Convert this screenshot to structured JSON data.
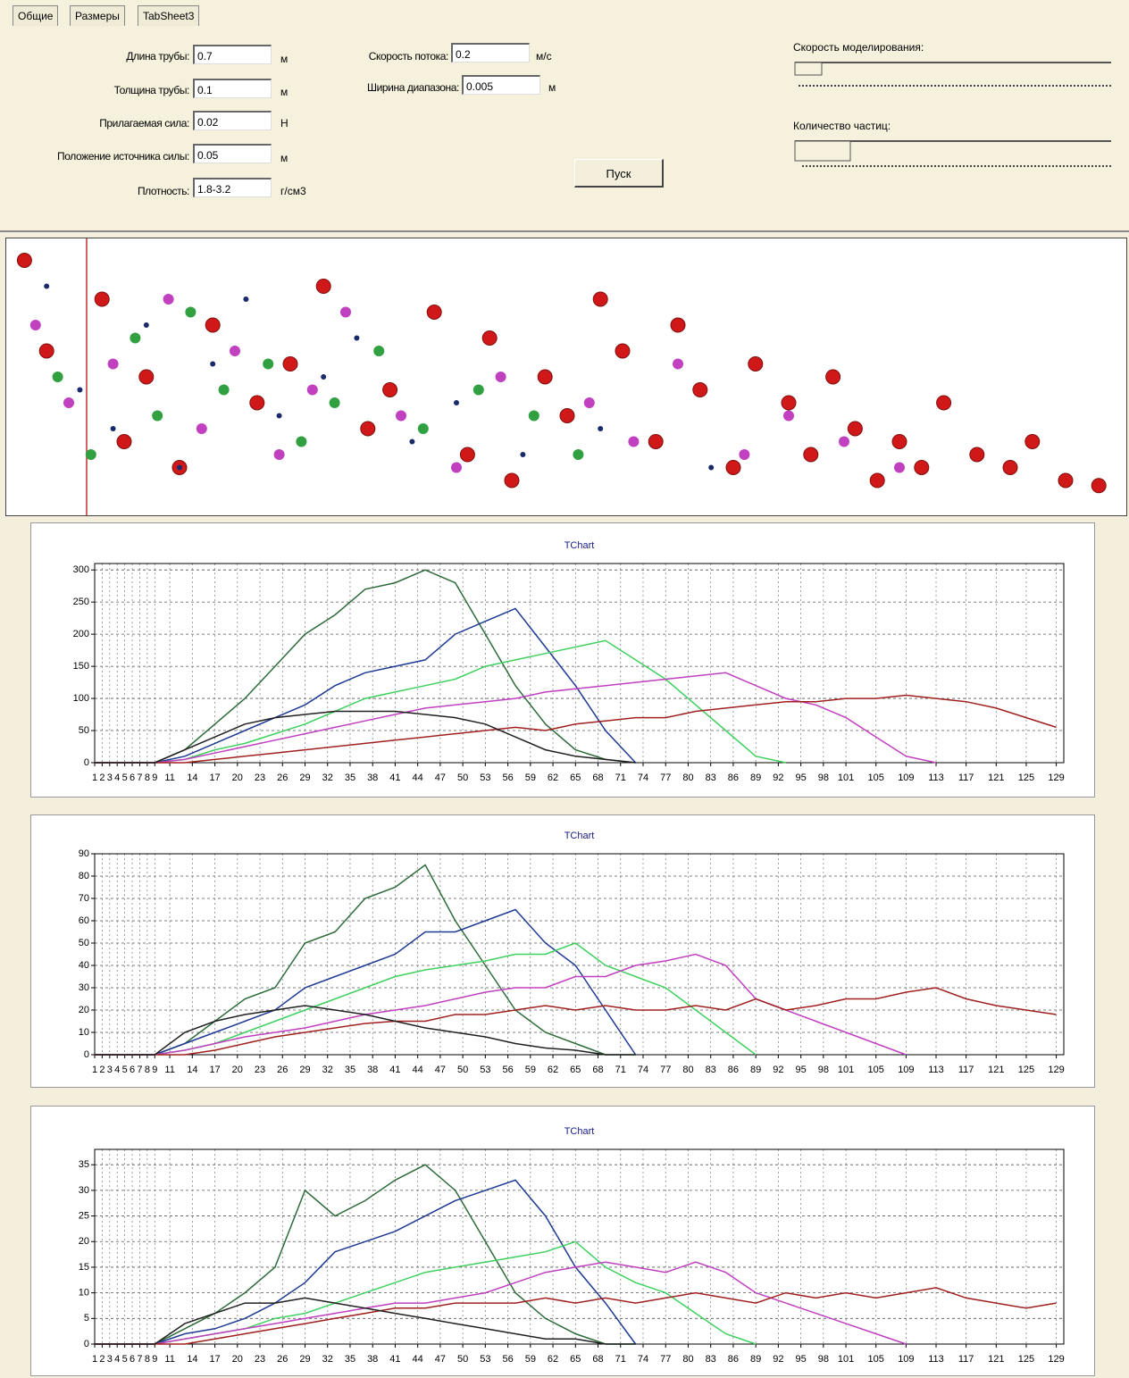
{
  "form": {
    "tabs": [
      "Общие",
      "Размеры",
      "TabSheet3"
    ],
    "left_fields": [
      {
        "label": "Длина трубы:",
        "value": "0.7",
        "unit": "м"
      },
      {
        "label": "Толщина трубы:",
        "value": "0.1",
        "unit": "м"
      },
      {
        "label": "Прилагаемая сила:",
        "value": "0.02",
        "unit": "Н"
      },
      {
        "label": "Положение источника силы:",
        "value": "0.05",
        "unit": "м"
      },
      {
        "label": "Плотность:",
        "value": "1.8-3.2",
        "unit": "г/см3"
      }
    ],
    "middle_fields": [
      {
        "label": "Скорость потока:",
        "value": "0.2",
        "unit": "м/с"
      },
      {
        "label": "Ширина диапазона:",
        "value": "0.005",
        "unit": "м"
      }
    ],
    "button": "Пуск",
    "sliders": [
      "Скорость моделирования:",
      "Количество частиц:"
    ]
  },
  "particles": [
    {
      "color": "#d01818",
      "x": [
        1,
        3,
        8,
        10,
        12,
        15,
        18,
        22,
        25,
        28,
        32,
        34,
        38,
        41,
        43,
        45,
        48,
        50,
        53,
        55,
        58,
        60,
        62,
        65,
        67,
        70,
        72,
        74,
        76,
        78,
        80,
        82,
        84,
        87,
        90,
        92,
        95,
        98
      ],
      "y": [
        5,
        40,
        20,
        75,
        50,
        85,
        30,
        60,
        45,
        15,
        70,
        55,
        25,
        80,
        35,
        90,
        50,
        65,
        20,
        40,
        75,
        30,
        55,
        85,
        45,
        60,
        80,
        50,
        70,
        90,
        75,
        85,
        60,
        80,
        85,
        75,
        90,
        92
      ]
    },
    {
      "color": "#c040c0",
      "x": [
        2,
        5,
        9,
        14,
        17,
        20,
        24,
        27,
        30,
        35,
        40,
        44,
        52,
        56,
        60,
        66,
        70,
        75,
        80
      ],
      "y": [
        30,
        60,
        45,
        20,
        70,
        40,
        80,
        55,
        25,
        65,
        85,
        50,
        60,
        75,
        45,
        80,
        65,
        75,
        85
      ]
    },
    {
      "color": "#30a040",
      "x": [
        4,
        7,
        11,
        13,
        16,
        19,
        23,
        26,
        29,
        33,
        37,
        42,
        47,
        51
      ],
      "y": [
        50,
        80,
        35,
        65,
        25,
        55,
        45,
        75,
        60,
        40,
        70,
        55,
        65,
        80
      ]
    },
    {
      "color": "#1a2a6a",
      "x": [
        3,
        6,
        9,
        12,
        15,
        18,
        21,
        24,
        28,
        31,
        36,
        40,
        46,
        53,
        63
      ],
      "y": [
        15,
        55,
        70,
        30,
        85,
        45,
        20,
        65,
        50,
        35,
        75,
        60,
        80,
        70,
        85
      ]
    }
  ],
  "chart_data": [
    {
      "type": "line",
      "title": "TChart",
      "grid": true,
      "x": [
        1,
        5,
        9,
        13,
        17,
        21,
        25,
        29,
        33,
        37,
        41,
        45,
        49,
        53,
        57,
        61,
        65,
        69,
        73,
        77,
        81,
        85,
        89,
        93,
        97,
        101,
        105,
        109,
        113,
        117,
        121,
        125,
        129
      ],
      "xlim": [
        1,
        130
      ],
      "xticks": [
        1,
        2,
        3,
        4,
        5,
        6,
        7,
        8,
        9,
        11,
        14,
        17,
        20,
        23,
        26,
        29,
        32,
        35,
        38,
        41,
        44,
        47,
        50,
        53,
        56,
        59,
        62,
        65,
        68,
        71,
        74,
        77,
        80,
        83,
        86,
        89,
        92,
        95,
        98,
        101,
        105,
        109,
        113,
        117,
        121,
        125,
        129
      ],
      "ylim": [
        0,
        310
      ],
      "yticks": [
        0,
        50,
        100,
        150,
        200,
        250,
        300
      ],
      "series": [
        {
          "color": "#2e6b3a",
          "values": [
            0,
            0,
            0,
            20,
            60,
            100,
            150,
            200,
            230,
            270,
            280,
            300,
            280,
            200,
            120,
            60,
            20,
            5,
            0,
            null,
            null,
            null,
            null,
            null,
            null,
            null,
            null,
            null,
            null,
            null,
            null,
            null,
            null
          ]
        },
        {
          "color": "#1f3a93",
          "values": [
            0,
            0,
            0,
            10,
            30,
            50,
            70,
            90,
            120,
            140,
            150,
            160,
            200,
            220,
            240,
            180,
            120,
            50,
            0,
            null,
            null,
            null,
            null,
            null,
            null,
            null,
            null,
            null,
            null,
            null,
            null,
            null,
            null
          ]
        },
        {
          "color": "#3fd060",
          "values": [
            0,
            0,
            0,
            5,
            20,
            30,
            45,
            60,
            80,
            100,
            110,
            120,
            130,
            150,
            160,
            170,
            180,
            190,
            160,
            130,
            90,
            50,
            10,
            0,
            null,
            null,
            null,
            null,
            null,
            null,
            null,
            null,
            null
          ]
        },
        {
          "color": "#c040c0",
          "values": [
            0,
            0,
            0,
            5,
            15,
            25,
            35,
            45,
            55,
            65,
            75,
            85,
            90,
            95,
            100,
            110,
            115,
            120,
            125,
            130,
            135,
            140,
            120,
            100,
            90,
            70,
            40,
            10,
            0,
            null,
            null,
            null,
            null
          ]
        },
        {
          "color": "#a02020",
          "values": [
            0,
            0,
            0,
            0,
            5,
            10,
            15,
            20,
            25,
            30,
            35,
            40,
            45,
            50,
            55,
            50,
            60,
            65,
            70,
            70,
            80,
            85,
            90,
            95,
            95,
            100,
            100,
            105,
            100,
            95,
            85,
            70,
            55
          ]
        },
        {
          "color": "#202020",
          "values": [
            0,
            0,
            0,
            20,
            40,
            60,
            70,
            75,
            80,
            80,
            80,
            75,
            70,
            60,
            40,
            20,
            10,
            5,
            0,
            null,
            null,
            null,
            null,
            null,
            null,
            null,
            null,
            null,
            null,
            null,
            null,
            null,
            null
          ]
        }
      ]
    },
    {
      "type": "line",
      "title": "TChart",
      "grid": true,
      "x": [
        1,
        5,
        9,
        13,
        17,
        21,
        25,
        29,
        33,
        37,
        41,
        45,
        49,
        53,
        57,
        61,
        65,
        69,
        73,
        77,
        81,
        85,
        89,
        93,
        97,
        101,
        105,
        109,
        113,
        117,
        121,
        125,
        129
      ],
      "xlim": [
        1,
        130
      ],
      "xticks": [
        1,
        2,
        3,
        4,
        5,
        6,
        7,
        8,
        9,
        11,
        14,
        17,
        20,
        23,
        26,
        29,
        32,
        35,
        38,
        41,
        44,
        47,
        50,
        53,
        56,
        59,
        62,
        65,
        68,
        71,
        74,
        77,
        80,
        83,
        86,
        89,
        92,
        95,
        98,
        101,
        105,
        109,
        113,
        117,
        121,
        125,
        129
      ],
      "ylim": [
        0,
        90
      ],
      "yticks": [
        0,
        10,
        20,
        30,
        40,
        50,
        60,
        70,
        80,
        90
      ],
      "series": [
        {
          "color": "#2e6b3a",
          "values": [
            0,
            0,
            0,
            5,
            15,
            25,
            30,
            50,
            55,
            70,
            75,
            85,
            60,
            40,
            20,
            10,
            5,
            0,
            0,
            null,
            null,
            null,
            null,
            null,
            null,
            null,
            null,
            null,
            null,
            null,
            null,
            null,
            null
          ]
        },
        {
          "color": "#1f3a93",
          "values": [
            0,
            0,
            0,
            5,
            10,
            15,
            20,
            30,
            35,
            40,
            45,
            55,
            55,
            60,
            65,
            50,
            40,
            20,
            0,
            null,
            null,
            null,
            null,
            null,
            null,
            null,
            null,
            null,
            null,
            null,
            null,
            null,
            null
          ]
        },
        {
          "color": "#3fd060",
          "values": [
            0,
            0,
            0,
            2,
            5,
            10,
            15,
            20,
            25,
            30,
            35,
            38,
            40,
            42,
            45,
            45,
            50,
            40,
            35,
            30,
            20,
            10,
            0,
            null,
            null,
            null,
            null,
            null,
            null,
            null,
            null,
            null,
            null
          ]
        },
        {
          "color": "#c040c0",
          "values": [
            0,
            0,
            0,
            2,
            5,
            8,
            10,
            12,
            15,
            18,
            20,
            22,
            25,
            28,
            30,
            30,
            35,
            35,
            40,
            42,
            45,
            40,
            25,
            20,
            15,
            10,
            5,
            0,
            null,
            null,
            null,
            null,
            null
          ]
        },
        {
          "color": "#a02020",
          "values": [
            0,
            0,
            0,
            0,
            2,
            5,
            8,
            10,
            12,
            14,
            15,
            15,
            18,
            18,
            20,
            22,
            20,
            22,
            20,
            20,
            22,
            20,
            25,
            20,
            22,
            25,
            25,
            28,
            30,
            25,
            22,
            20,
            18
          ]
        },
        {
          "color": "#202020",
          "values": [
            0,
            0,
            0,
            10,
            15,
            18,
            20,
            22,
            20,
            18,
            15,
            12,
            10,
            8,
            5,
            3,
            2,
            0,
            0,
            null,
            null,
            null,
            null,
            null,
            null,
            null,
            null,
            null,
            null,
            null,
            null,
            null,
            null
          ]
        }
      ]
    },
    {
      "type": "line",
      "title": "TChart",
      "grid": true,
      "x": [
        1,
        5,
        9,
        13,
        17,
        21,
        25,
        29,
        33,
        37,
        41,
        45,
        49,
        53,
        57,
        61,
        65,
        69,
        73,
        77,
        81,
        85,
        89,
        93,
        97,
        101,
        105,
        109,
        113,
        117,
        121,
        125,
        129
      ],
      "xlim": [
        1,
        130
      ],
      "xticks": [
        1,
        2,
        3,
        4,
        5,
        6,
        7,
        8,
        9,
        11,
        14,
        17,
        20,
        23,
        26,
        29,
        32,
        35,
        38,
        41,
        44,
        47,
        50,
        53,
        56,
        59,
        62,
        65,
        68,
        71,
        74,
        77,
        80,
        83,
        86,
        89,
        92,
        95,
        98,
        101,
        105,
        109,
        113,
        117,
        121,
        125,
        129
      ],
      "ylim": [
        0,
        38
      ],
      "yticks": [
        0,
        5,
        10,
        15,
        20,
        25,
        30,
        35
      ],
      "series": [
        {
          "color": "#2e6b3a",
          "values": [
            0,
            0,
            0,
            3,
            6,
            10,
            15,
            30,
            25,
            28,
            32,
            35,
            30,
            20,
            10,
            5,
            2,
            0,
            0,
            null,
            null,
            null,
            null,
            null,
            null,
            null,
            null,
            null,
            null,
            null,
            null,
            null,
            null
          ]
        },
        {
          "color": "#1f3a93",
          "values": [
            0,
            0,
            0,
            2,
            3,
            5,
            8,
            12,
            18,
            20,
            22,
            25,
            28,
            30,
            32,
            25,
            15,
            8,
            0,
            null,
            null,
            null,
            null,
            null,
            null,
            null,
            null,
            null,
            null,
            null,
            null,
            null,
            null
          ]
        },
        {
          "color": "#3fd060",
          "values": [
            0,
            0,
            0,
            1,
            2,
            3,
            5,
            6,
            8,
            10,
            12,
            14,
            15,
            16,
            17,
            18,
            20,
            15,
            12,
            10,
            6,
            2,
            0,
            null,
            null,
            null,
            null,
            null,
            null,
            null,
            null,
            null,
            null
          ]
        },
        {
          "color": "#c040c0",
          "values": [
            0,
            0,
            0,
            1,
            2,
            3,
            4,
            5,
            6,
            7,
            8,
            8,
            9,
            10,
            12,
            14,
            15,
            16,
            15,
            14,
            16,
            14,
            10,
            8,
            6,
            4,
            2,
            0,
            null,
            null,
            null,
            null,
            null
          ]
        },
        {
          "color": "#a02020",
          "values": [
            0,
            0,
            0,
            0,
            1,
            2,
            3,
            4,
            5,
            6,
            7,
            7,
            8,
            8,
            8,
            9,
            8,
            9,
            8,
            9,
            10,
            9,
            8,
            10,
            9,
            10,
            9,
            10,
            11,
            9,
            8,
            7,
            8
          ]
        },
        {
          "color": "#202020",
          "values": [
            0,
            0,
            0,
            4,
            6,
            8,
            8,
            9,
            8,
            7,
            6,
            5,
            4,
            3,
            2,
            1,
            1,
            0,
            0,
            null,
            null,
            null,
            null,
            null,
            null,
            null,
            null,
            null,
            null,
            null,
            null,
            null,
            null
          ]
        }
      ]
    }
  ]
}
